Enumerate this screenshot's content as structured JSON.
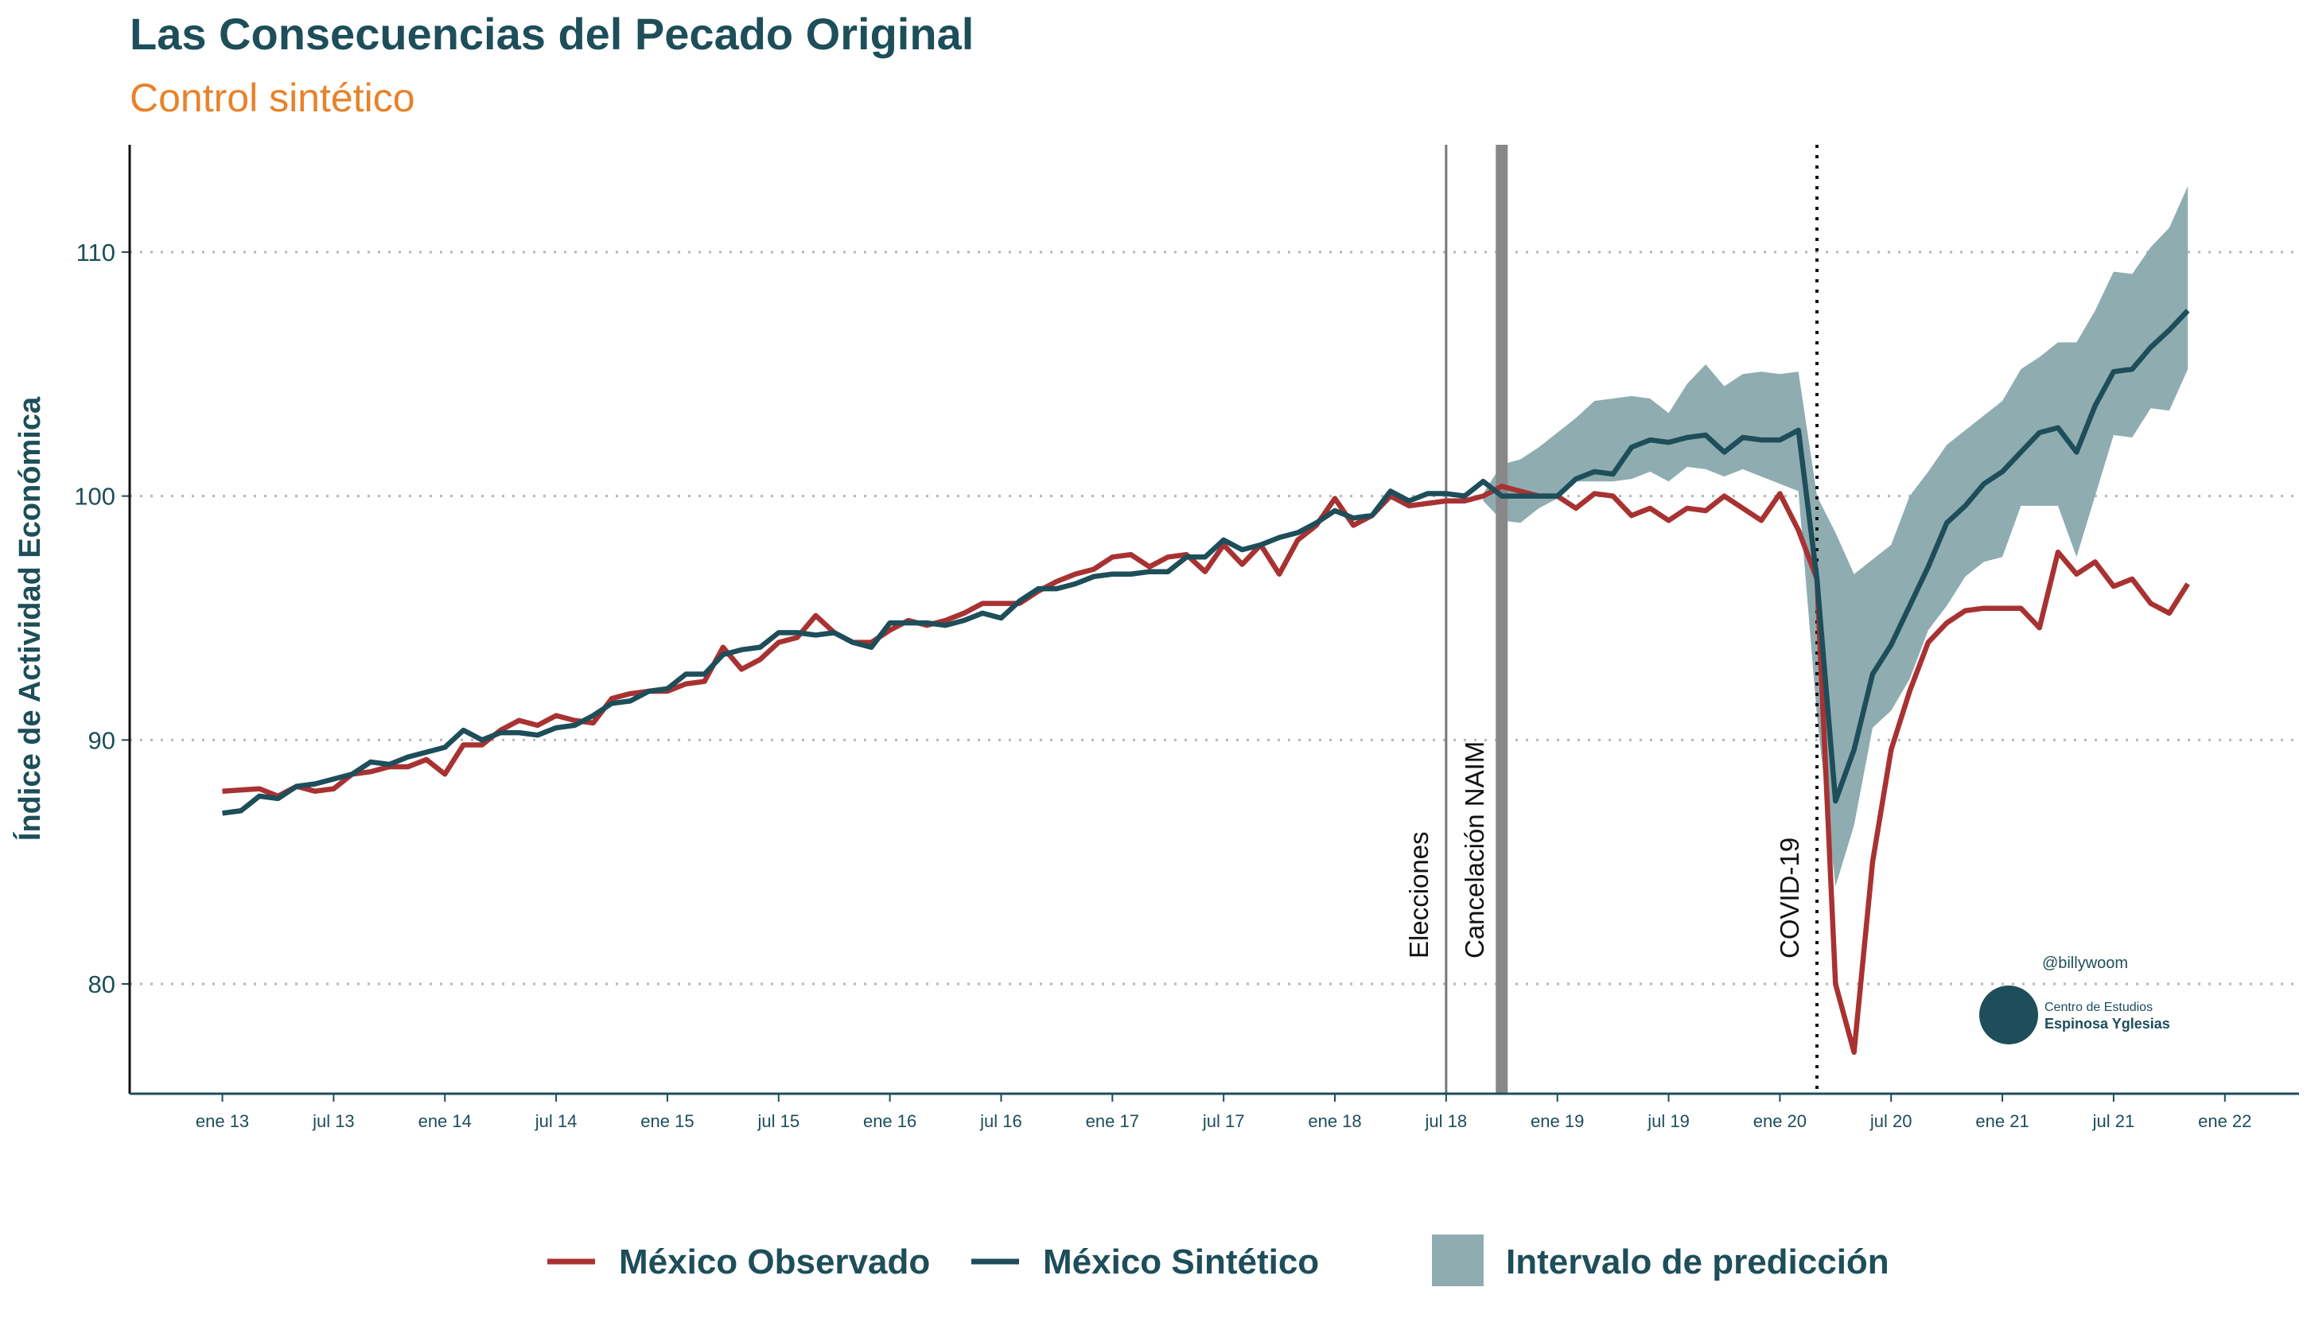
{
  "chart_data": {
    "type": "line",
    "title": "Las Consecuencias del Pecado Original",
    "subtitle": "Control sintético",
    "y_label": "Índice de Actividad Económica",
    "x": [
      "2013-01",
      "2013-02",
      "2013-03",
      "2013-04",
      "2013-05",
      "2013-06",
      "2013-07",
      "2013-08",
      "2013-09",
      "2013-10",
      "2013-11",
      "2013-12",
      "2014-01",
      "2014-02",
      "2014-03",
      "2014-04",
      "2014-05",
      "2014-06",
      "2014-07",
      "2014-08",
      "2014-09",
      "2014-10",
      "2014-11",
      "2014-12",
      "2015-01",
      "2015-02",
      "2015-03",
      "2015-04",
      "2015-05",
      "2015-06",
      "2015-07",
      "2015-08",
      "2015-09",
      "2015-10",
      "2015-11",
      "2015-12",
      "2016-01",
      "2016-02",
      "2016-03",
      "2016-04",
      "2016-05",
      "2016-06",
      "2016-07",
      "2016-08",
      "2016-09",
      "2016-10",
      "2016-11",
      "2016-12",
      "2017-01",
      "2017-02",
      "2017-03",
      "2017-04",
      "2017-05",
      "2017-06",
      "2017-07",
      "2017-08",
      "2017-09",
      "2017-10",
      "2017-11",
      "2017-12",
      "2018-01",
      "2018-02",
      "2018-03",
      "2018-04",
      "2018-05",
      "2018-06",
      "2018-07",
      "2018-08",
      "2018-09",
      "2018-10",
      "2018-11",
      "2018-12",
      "2019-01",
      "2019-02",
      "2019-03",
      "2019-04",
      "2019-05",
      "2019-06",
      "2019-07",
      "2019-08",
      "2019-09",
      "2019-10",
      "2019-11",
      "2019-12",
      "2020-01",
      "2020-02",
      "2020-03",
      "2020-04",
      "2020-05",
      "2020-06",
      "2020-07",
      "2020-08",
      "2020-09",
      "2020-10",
      "2020-11",
      "2020-12",
      "2021-01",
      "2021-02",
      "2021-03",
      "2021-04",
      "2021-05",
      "2021-06",
      "2021-07",
      "2021-08",
      "2021-09",
      "2021-10",
      "2021-11"
    ],
    "series": [
      {
        "name": "México Observado",
        "color": "#a83232",
        "values": [
          87.9,
          87.95,
          88.0,
          87.7,
          88.1,
          87.9,
          88.0,
          88.6,
          88.7,
          88.9,
          88.9,
          89.2,
          88.6,
          89.8,
          89.8,
          90.4,
          90.8,
          90.6,
          91.0,
          90.8,
          90.7,
          91.7,
          91.9,
          92.0,
          92.0,
          92.3,
          92.4,
          93.8,
          92.9,
          93.3,
          94.0,
          94.2,
          95.1,
          94.4,
          94.0,
          94.0,
          94.5,
          94.9,
          94.7,
          94.9,
          95.2,
          95.6,
          95.6,
          95.6,
          96.1,
          96.5,
          96.8,
          97.0,
          97.5,
          97.6,
          97.1,
          97.5,
          97.6,
          96.9,
          98.0,
          97.2,
          98.0,
          96.8,
          98.2,
          98.8,
          99.9,
          98.8,
          99.2,
          100.0,
          99.6,
          99.7,
          99.8,
          99.8,
          100.0,
          100.4,
          100.2,
          100.0,
          100.0,
          99.5,
          100.1,
          100.0,
          99.2,
          99.5,
          99.0,
          99.5,
          99.4,
          100.0,
          99.5,
          99.0,
          100.1,
          98.6,
          96.6,
          80.0,
          77.2,
          85.0,
          89.6,
          92.0,
          94.0,
          94.8,
          95.3,
          95.4,
          95.4,
          95.4,
          94.6,
          97.7,
          96.8,
          97.3,
          96.3,
          96.6,
          95.6,
          95.2,
          96.4
        ]
      },
      {
        "name": "México Sintético",
        "color": "#1d4e5a",
        "values": [
          87.0,
          87.1,
          87.7,
          87.6,
          88.1,
          88.2,
          88.4,
          88.6,
          89.1,
          89.0,
          89.3,
          89.5,
          89.7,
          90.4,
          90.0,
          90.3,
          90.3,
          90.2,
          90.5,
          90.6,
          91.0,
          91.5,
          91.6,
          92.0,
          92.1,
          92.7,
          92.7,
          93.5,
          93.7,
          93.8,
          94.4,
          94.4,
          94.3,
          94.4,
          94.0,
          93.8,
          94.8,
          94.8,
          94.8,
          94.7,
          94.9,
          95.2,
          95.0,
          95.7,
          96.2,
          96.2,
          96.4,
          96.7,
          96.8,
          96.8,
          96.9,
          96.9,
          97.5,
          97.5,
          98.2,
          97.8,
          98.0,
          98.3,
          98.5,
          98.9,
          99.4,
          99.1,
          99.2,
          100.2,
          99.8,
          100.1,
          100.1,
          100.0,
          100.6,
          100.0,
          100.0,
          100.0,
          100.0,
          100.7,
          101.0,
          100.9,
          102.0,
          102.3,
          102.2,
          102.4,
          102.5,
          101.8,
          102.4,
          102.3,
          102.3,
          102.7,
          96.6,
          87.5,
          89.6,
          92.7,
          93.9,
          95.5,
          97.1,
          98.9,
          99.6,
          100.5,
          101.0,
          101.8,
          102.6,
          102.8,
          101.8,
          103.7,
          105.1,
          105.2,
          106.1,
          106.8,
          107.6
        ]
      }
    ],
    "band": {
      "name": "Intervalo de predicción",
      "color": "#8fadb1",
      "lower": [
        null,
        null,
        null,
        null,
        null,
        null,
        null,
        null,
        null,
        null,
        null,
        null,
        null,
        null,
        null,
        null,
        null,
        null,
        null,
        null,
        null,
        null,
        null,
        null,
        null,
        null,
        null,
        null,
        null,
        null,
        null,
        null,
        null,
        null,
        null,
        null,
        null,
        null,
        null,
        null,
        null,
        null,
        null,
        null,
        null,
        null,
        null,
        null,
        null,
        null,
        null,
        null,
        null,
        null,
        null,
        null,
        null,
        null,
        null,
        null,
        null,
        null,
        null,
        null,
        null,
        null,
        null,
        null,
        99.8,
        99.0,
        98.9,
        99.5,
        99.9,
        100.6,
        100.6,
        100.6,
        100.7,
        101.0,
        100.6,
        101.2,
        101.1,
        100.8,
        101.1,
        100.8,
        100.5,
        100.2,
        91.0,
        84.0,
        86.5,
        90.5,
        91.2,
        92.5,
        94.5,
        95.5,
        96.7,
        97.3,
        97.5,
        99.6,
        99.6,
        99.6,
        97.5,
        100.0,
        102.5,
        102.4,
        103.6,
        103.5,
        105.2
      ],
      "upper": [
        null,
        null,
        null,
        null,
        null,
        null,
        null,
        null,
        null,
        null,
        null,
        null,
        null,
        null,
        null,
        null,
        null,
        null,
        null,
        null,
        null,
        null,
        null,
        null,
        null,
        null,
        null,
        null,
        null,
        null,
        null,
        null,
        null,
        null,
        null,
        null,
        null,
        null,
        null,
        null,
        null,
        null,
        null,
        null,
        null,
        null,
        null,
        null,
        null,
        null,
        null,
        null,
        null,
        null,
        null,
        null,
        null,
        null,
        null,
        null,
        null,
        null,
        null,
        null,
        null,
        null,
        null,
        null,
        100.1,
        101.3,
        101.5,
        102.0,
        102.6,
        103.2,
        103.9,
        104.0,
        104.1,
        104.0,
        103.4,
        104.6,
        105.4,
        104.5,
        105.0,
        105.1,
        105.0,
        105.1,
        100.0,
        98.5,
        96.8,
        97.4,
        98.0,
        100.0,
        101.0,
        102.1,
        102.7,
        103.3,
        103.9,
        105.2,
        105.7,
        106.3,
        106.3,
        107.6,
        109.2,
        109.1,
        110.2,
        111.0,
        112.7
      ]
    },
    "xlim": [
      "2012-08",
      "2022-05"
    ],
    "xticks": [
      {
        "value": "2013-01",
        "label": "ene 13"
      },
      {
        "value": "2013-07",
        "label": "jul 13"
      },
      {
        "value": "2014-01",
        "label": "ene 14"
      },
      {
        "value": "2014-07",
        "label": "jul 14"
      },
      {
        "value": "2015-01",
        "label": "ene 15"
      },
      {
        "value": "2015-07",
        "label": "jul 15"
      },
      {
        "value": "2016-01",
        "label": "ene 16"
      },
      {
        "value": "2016-07",
        "label": "jul 16"
      },
      {
        "value": "2017-01",
        "label": "ene 17"
      },
      {
        "value": "2017-07",
        "label": "jul 17"
      },
      {
        "value": "2018-01",
        "label": "ene 18"
      },
      {
        "value": "2018-07",
        "label": "jul 18"
      },
      {
        "value": "2019-01",
        "label": "ene 19"
      },
      {
        "value": "2019-07",
        "label": "jul 19"
      },
      {
        "value": "2020-01",
        "label": "ene 20"
      },
      {
        "value": "2020-07",
        "label": "jul 20"
      },
      {
        "value": "2021-01",
        "label": "ene 21"
      },
      {
        "value": "2021-07",
        "label": "jul 21"
      },
      {
        "value": "2022-01",
        "label": "ene 22"
      }
    ],
    "ylim": [
      75.5,
      114.4
    ],
    "yticks": [
      80,
      90,
      100,
      110
    ],
    "grid": true,
    "events": [
      {
        "x": "2018-07",
        "label": "Elecciones",
        "style": "solid"
      },
      {
        "x": "2018-10",
        "label": "Cancelación NAIM",
        "style": "thick"
      },
      {
        "x": "2020-03",
        "label": "COVID-19",
        "style": "dotted"
      }
    ],
    "watermark": {
      "handle": "@billywoom",
      "org_line1": "Centro de Estudios",
      "org_line2": "Espinosa Yglesias"
    },
    "legend_position": "bottom"
  }
}
